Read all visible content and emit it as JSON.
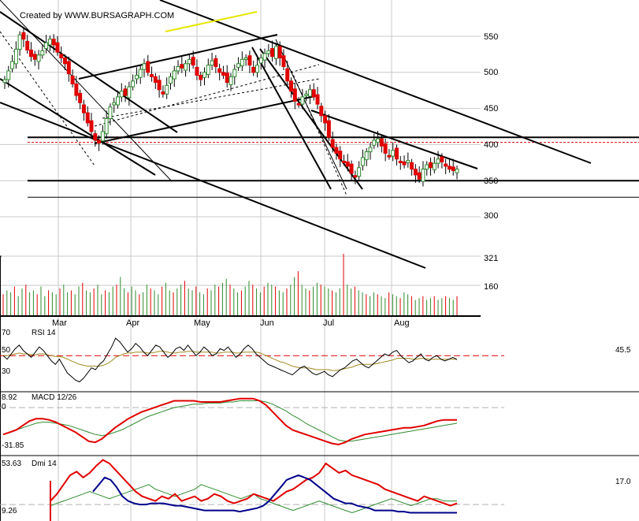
{
  "credit": "Created by WWW.BURSAGRAPH.COM",
  "colors": {
    "up": "#2e8b2e",
    "down": "#e00000",
    "line": "#000000",
    "signal": "#a08a20",
    "dmi_plus": "#2e8b2e",
    "dmi_minus": "#e00000",
    "adx": "#00008b",
    "ref": "#e00000",
    "highlight": "#e6e600"
  },
  "chart_data": [
    {
      "type": "candlestick",
      "title": "",
      "xticks": [
        "Mar",
        "Apr",
        "May",
        "Jun",
        "Jul",
        "Aug"
      ],
      "yticks": [
        "550",
        "500",
        "450",
        "400",
        "350",
        "300"
      ],
      "ylim": [
        270,
        590
      ],
      "reference_levels": [
        410,
        403,
        350,
        327
      ],
      "closes": [
        490,
        502,
        515,
        532,
        552,
        546,
        531,
        522,
        518,
        524,
        530,
        541,
        546,
        538,
        528,
        520,
        512,
        498,
        484,
        468,
        458,
        444,
        430,
        418,
        406,
        402,
        418,
        436,
        452,
        458,
        466,
        474,
        468,
        480,
        488,
        496,
        504,
        512,
        500,
        494,
        486,
        476,
        470,
        482,
        494,
        502,
        508,
        506,
        512,
        518,
        510,
        496,
        490,
        500,
        510,
        516,
        508,
        500,
        496,
        486,
        494,
        504,
        512,
        518,
        520,
        510,
        500,
        510,
        520,
        526,
        530,
        522,
        536,
        520,
        508,
        488,
        474,
        460,
        456,
        466,
        470,
        476,
        466,
        456,
        440,
        430,
        410,
        396,
        388,
        380,
        376,
        370,
        360,
        356,
        368,
        382,
        390,
        396,
        406,
        408,
        398,
        388,
        384,
        392,
        380,
        376,
        372,
        378,
        366,
        358,
        352,
        366,
        372,
        368,
        374,
        380,
        376,
        370,
        366,
        364,
        366
      ]
    },
    {
      "type": "bar",
      "title": "",
      "yticks": [
        "321",
        "160"
      ],
      "ylim": [
        0,
        321
      ],
      "values": [
        110,
        130,
        120,
        150,
        100,
        140,
        160,
        120,
        130,
        110,
        150,
        100,
        130,
        120,
        110,
        140,
        160,
        120,
        130,
        110,
        150,
        170,
        130,
        120,
        140,
        160,
        110,
        130,
        120,
        150,
        160,
        200,
        140,
        120,
        150,
        130,
        110,
        120,
        160,
        140,
        130,
        110,
        150,
        170,
        130,
        120,
        140,
        160,
        180,
        140,
        130,
        150,
        120,
        110,
        140,
        130,
        160,
        150,
        170,
        190,
        160,
        140,
        120,
        130,
        150,
        180,
        160,
        140,
        120,
        150,
        170,
        160,
        150,
        130,
        120,
        140,
        160,
        200,
        230,
        160,
        140,
        130,
        150,
        170,
        160,
        150,
        140,
        130,
        120,
        140,
        321,
        160,
        140,
        150,
        130,
        120,
        110,
        100,
        120,
        110,
        100,
        90,
        120,
        110,
        100,
        90,
        120,
        110,
        100,
        80,
        90,
        100,
        80,
        90,
        100,
        80,
        90,
        100,
        90,
        80,
        100
      ]
    },
    {
      "type": "line",
      "title": "RSI 14",
      "yticks": [
        "70",
        "50",
        "30"
      ],
      "ylim": [
        15,
        80
      ],
      "reference": 50,
      "last_value": "45.5",
      "series": [
        {
          "values": [
            50,
            46,
            52,
            58,
            62,
            56,
            52,
            48,
            54,
            60,
            56,
            50,
            44,
            40,
            46,
            38,
            30,
            26,
            22,
            20,
            24,
            30,
            36,
            34,
            40,
            44,
            52,
            60,
            70,
            66,
            60,
            54,
            58,
            64,
            60,
            54,
            50,
            56,
            62,
            60,
            54,
            48,
            52,
            58,
            60,
            56,
            62,
            56,
            50,
            54,
            60,
            56,
            50,
            52,
            58,
            56,
            60,
            54,
            48,
            52,
            58,
            62,
            58,
            52,
            48,
            44,
            40,
            38,
            36,
            34,
            32,
            30,
            28,
            32,
            36,
            38,
            34,
            30,
            28,
            30,
            32,
            28,
            26,
            30,
            34,
            36,
            40,
            44,
            46,
            42,
            38,
            36,
            40,
            44,
            48,
            52,
            50,
            54,
            56,
            50,
            46,
            42,
            44,
            48,
            52,
            46,
            44,
            48,
            50,
            46,
            44,
            46,
            48,
            45.5
          ]
        },
        {
          "values": [
            50,
            50,
            51,
            52,
            53,
            52,
            52,
            51,
            51,
            52,
            52,
            51,
            50,
            49,
            49,
            48,
            46,
            44,
            42,
            40,
            39,
            38,
            38,
            38,
            38,
            39,
            41,
            44,
            48,
            50,
            52,
            53,
            53,
            54,
            54,
            54,
            53,
            53,
            54,
            55,
            55,
            54,
            53,
            53,
            54,
            54,
            55,
            55,
            54,
            54,
            54,
            54,
            54,
            53,
            53,
            54,
            54,
            54,
            53,
            53,
            54,
            54,
            54,
            54,
            53,
            51,
            49,
            47,
            45,
            43,
            42,
            40,
            38,
            37,
            36,
            36,
            36,
            35,
            34,
            34,
            34,
            34,
            33,
            33,
            34,
            35,
            36,
            37,
            39,
            40,
            40,
            40,
            40,
            41,
            42,
            43,
            44,
            45,
            47,
            47,
            47,
            47,
            46,
            46,
            47,
            47,
            46,
            46,
            46,
            46,
            46,
            46,
            46,
            46
          ]
        }
      ]
    },
    {
      "type": "line",
      "title": "MACD 12/26",
      "yticks": [
        "8.92",
        "0",
        "-31.85"
      ],
      "ylim": [
        -40,
        12
      ],
      "series": [
        {
          "values": [
            -24,
            -22,
            -20,
            -16,
            -12,
            -10,
            -10,
            -11,
            -13,
            -16,
            -19,
            -22,
            -26,
            -30,
            -31,
            -28,
            -23,
            -18,
            -14,
            -10,
            -7,
            -4,
            -2,
            0,
            2,
            4,
            6,
            6,
            6,
            6,
            5,
            5,
            5,
            5,
            6,
            7,
            8,
            8,
            8,
            6,
            2,
            -4,
            -10,
            -16,
            -20,
            -22,
            -24,
            -26,
            -28,
            -30,
            -32,
            -33,
            -31,
            -28,
            -26,
            -24,
            -23,
            -22,
            -21,
            -20,
            -19,
            -18,
            -18,
            -17,
            -16,
            -14,
            -12,
            -11,
            -11,
            -11
          ]
        },
        {
          "values": [
            -24,
            -22,
            -20,
            -18,
            -16,
            -14,
            -13,
            -13,
            -14,
            -15,
            -16,
            -18,
            -20,
            -22,
            -24,
            -25,
            -24,
            -22,
            -20,
            -17,
            -14,
            -11,
            -8,
            -6,
            -4,
            -2,
            0,
            1,
            2,
            3,
            3,
            4,
            4,
            4,
            5,
            5,
            6,
            6,
            6,
            6,
            5,
            3,
            0,
            -3,
            -7,
            -10,
            -14,
            -17,
            -20,
            -23,
            -26,
            -29,
            -30,
            -30,
            -29,
            -28,
            -27,
            -26,
            -25,
            -24,
            -23,
            -22,
            -21,
            -20,
            -19,
            -18,
            -17,
            -16,
            -15,
            -14
          ]
        }
      ]
    },
    {
      "type": "line",
      "title": "Dmi 14",
      "yticks": [
        "53.63",
        "9.26"
      ],
      "ylim": [
        5,
        56
      ],
      "last_value": "17.0",
      "series": [
        {
          "values": [
            20,
            26,
            34,
            42,
            45,
            40,
            44,
            50,
            55,
            52,
            46,
            40,
            34,
            28,
            24,
            22,
            20,
            24,
            22,
            26,
            20,
            22,
            24,
            20,
            22,
            26,
            24,
            20,
            18,
            20,
            22,
            26,
            24,
            22,
            20,
            24,
            28,
            30,
            34,
            38,
            40,
            44,
            52,
            48,
            44,
            46,
            42,
            40,
            38,
            36,
            34,
            30,
            28,
            26,
            24,
            22,
            20,
            24,
            22,
            20,
            18,
            16,
            18
          ]
        },
        {
          "values": [
            16,
            18,
            20,
            22,
            24,
            26,
            28,
            26,
            24,
            22,
            24,
            26,
            28,
            30,
            32,
            34,
            30,
            28,
            26,
            24,
            26,
            28,
            30,
            34,
            32,
            30,
            28,
            26,
            24,
            22,
            24,
            26,
            22,
            20,
            18,
            16,
            14,
            12,
            14,
            16,
            18,
            20,
            18,
            16,
            14,
            12,
            10,
            12,
            14,
            16,
            18,
            20,
            22,
            20,
            18,
            16,
            18,
            20,
            22,
            22,
            20,
            20,
            20
          ]
        },
        {
          "values": [
            28,
            34,
            40,
            38,
            32,
            24,
            20,
            18,
            17,
            17,
            18,
            18,
            18,
            17,
            16,
            16,
            15,
            14,
            13,
            12,
            12,
            12,
            12,
            12,
            12,
            11,
            12,
            13,
            14,
            16,
            20,
            26,
            32,
            38,
            40,
            42,
            40,
            38,
            34,
            30,
            26,
            22,
            20,
            18,
            18,
            16,
            15,
            14,
            12,
            12,
            12,
            12,
            11,
            11,
            10,
            10,
            10,
            10,
            10,
            10,
            10,
            10,
            10
          ]
        }
      ]
    }
  ]
}
